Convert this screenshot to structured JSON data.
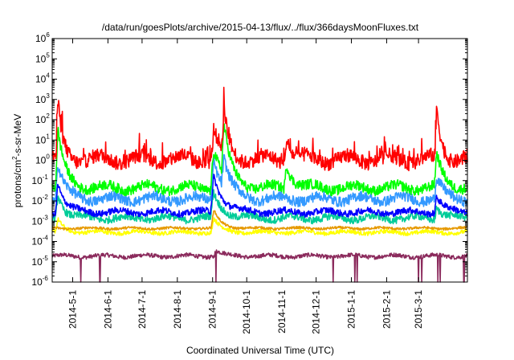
{
  "chart_data": {
    "type": "line",
    "title": "/data/run/goesPlots/archive/2015-04-13/flux/../flux/366daysMoonFluxes.txt",
    "xlabel": "Coordinated Universal Time (UTC)",
    "ylabel": "protons/cm²-s-sr-MeV",
    "ylabel_parts": {
      "before": "protons/cm",
      "sup": "2",
      "after": "-s-sr-MeV"
    },
    "yscale": "log",
    "ylim_exp": [
      -6,
      6
    ],
    "xlim": [
      "2014-04-13",
      "2015-04-13"
    ],
    "y_ticks": [
      {
        "base": "10",
        "exp": "6"
      },
      {
        "base": "10",
        "exp": "5"
      },
      {
        "base": "10",
        "exp": "4"
      },
      {
        "base": "10",
        "exp": "3"
      },
      {
        "base": "10",
        "exp": "2"
      },
      {
        "base": "10",
        "exp": "1"
      },
      {
        "base": "10",
        "exp": "0"
      },
      {
        "base": "10",
        "exp": "-1"
      },
      {
        "base": "10",
        "exp": "-2"
      },
      {
        "base": "10",
        "exp": "-3"
      },
      {
        "base": "10",
        "exp": "-4"
      },
      {
        "base": "10",
        "exp": "-5"
      },
      {
        "base": "10",
        "exp": "-6"
      }
    ],
    "x_ticks": [
      {
        "label": "2014-5-1",
        "date": "2014-05-01"
      },
      {
        "label": "2014-6-1",
        "date": "2014-06-01"
      },
      {
        "label": "2014-7-1",
        "date": "2014-07-01"
      },
      {
        "label": "2014-8-1",
        "date": "2014-08-01"
      },
      {
        "label": "2014-9-1",
        "date": "2014-09-01"
      },
      {
        "label": "2014-10-1",
        "date": "2014-10-01"
      },
      {
        "label": "2014-11-1",
        "date": "2014-11-01"
      },
      {
        "label": "2014-12-1",
        "date": "2014-12-01"
      },
      {
        "label": "2015-1-1",
        "date": "2015-01-01"
      },
      {
        "label": "2015-2-1",
        "date": "2015-02-01"
      },
      {
        "label": "2015-3-1",
        "date": "2015-03-01"
      }
    ],
    "series": [
      {
        "color": "#8b2a5c",
        "base_log": -4.72,
        "noise": 0.1,
        "events": [
          {
            "date": "2014-09-04",
            "amp": 0.3,
            "w": 3
          }
        ],
        "spikes_down": [
          "2014-05-08",
          "2014-05-25",
          "2014-09-04",
          "2014-12-16",
          "2015-01-04",
          "2015-01-06",
          "2015-03-01",
          "2015-03-04",
          "2015-03-18",
          "2015-03-20",
          "2015-04-10"
        ]
      },
      {
        "color": "#ffff00",
        "base_log": -3.55,
        "noise": 0.1,
        "events": [
          {
            "date": "2014-04-18",
            "amp": 0.6,
            "w": 3
          },
          {
            "date": "2014-09-02",
            "amp": 0.7,
            "w": 3
          }
        ]
      },
      {
        "color": "#e69900",
        "base_log": -3.35,
        "noise": 0.06,
        "events": [
          {
            "date": "2014-09-02",
            "amp": 0.9,
            "w": 3
          }
        ]
      },
      {
        "color": "#00cc99",
        "base_log": -2.85,
        "noise": 0.18,
        "events": [
          {
            "date": "2014-04-18",
            "amp": 1.2,
            "w": 3
          },
          {
            "date": "2014-09-02",
            "amp": 1.2,
            "w": 4
          },
          {
            "date": "2015-03-17",
            "amp": 0.6,
            "w": 3
          }
        ]
      },
      {
        "color": "#0000ff",
        "base_log": -2.55,
        "noise": 0.16,
        "events": [
          {
            "date": "2014-04-18",
            "amp": 1.5,
            "w": 3
          },
          {
            "date": "2014-09-02",
            "amp": 1.8,
            "w": 4
          },
          {
            "date": "2015-03-17",
            "amp": 0.8,
            "w": 3
          }
        ]
      },
      {
        "color": "#3399ff",
        "base_log": -1.9,
        "noise": 0.25,
        "events": [
          {
            "date": "2014-04-18",
            "amp": 1.8,
            "w": 3
          },
          {
            "date": "2014-09-02",
            "amp": 2.0,
            "w": 4
          },
          {
            "date": "2014-09-11",
            "amp": 1.4,
            "w": 3
          },
          {
            "date": "2015-03-17",
            "amp": 1.0,
            "w": 3
          }
        ]
      },
      {
        "color": "#00ff00",
        "base_log": -1.35,
        "noise": 0.25,
        "events": [
          {
            "date": "2014-04-18",
            "amp": 2.8,
            "w": 3
          },
          {
            "date": "2014-09-02",
            "amp": 2.0,
            "w": 4
          },
          {
            "date": "2014-09-11",
            "amp": 2.4,
            "w": 3
          },
          {
            "date": "2014-11-05",
            "amp": 1.2,
            "w": 3
          },
          {
            "date": "2015-03-17",
            "amp": 1.6,
            "w": 3
          }
        ]
      },
      {
        "color": "#ff0000",
        "base_log": 0.05,
        "noise": 0.35,
        "events": [
          {
            "date": "2014-04-18",
            "amp": 2.8,
            "w": 2
          },
          {
            "date": "2014-09-02",
            "amp": 1.5,
            "w": 3
          },
          {
            "date": "2014-09-11",
            "amp": 2.2,
            "w": 2
          },
          {
            "date": "2014-11-05",
            "amp": 1.3,
            "w": 2
          },
          {
            "date": "2015-03-17",
            "amp": 2.5,
            "w": 2
          }
        ],
        "spikes_up": [
          "2014-04-17",
          "2014-09-11",
          "2015-03-16"
        ]
      }
    ],
    "grid": false,
    "legend": "none"
  }
}
